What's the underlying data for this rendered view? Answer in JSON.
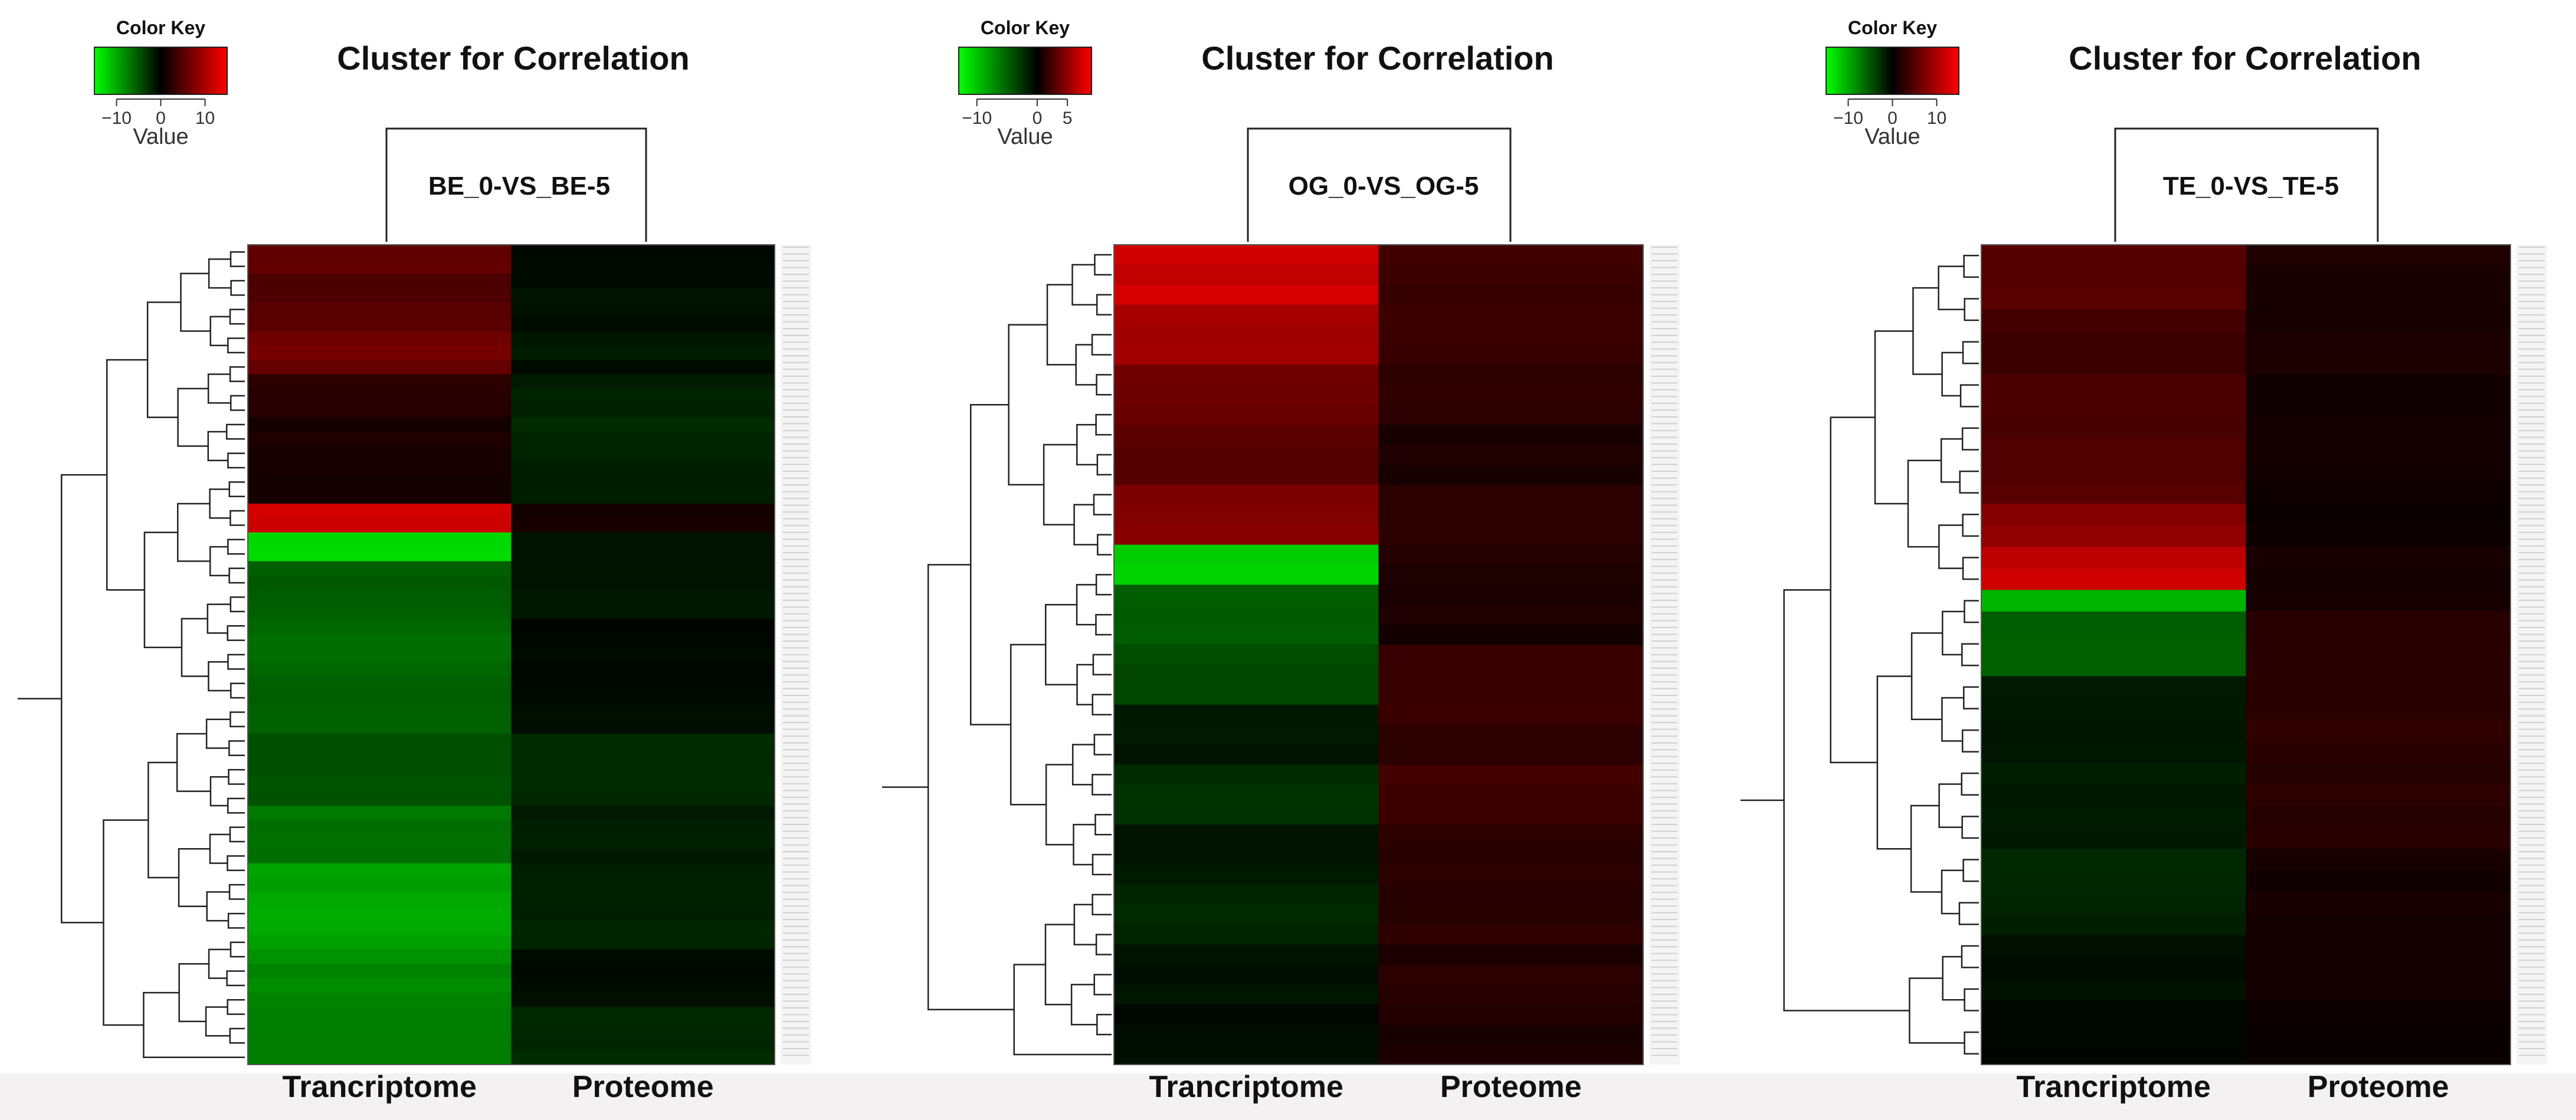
{
  "chart_data": [
    {
      "type": "heatmap",
      "title": "Cluster for Correlation",
      "column_dendrogram_label": "BE_0-VS_BE-5",
      "columns": [
        "Trancriptome",
        "Proteome"
      ],
      "color_key": {
        "title": "Color Key",
        "label": "Value",
        "ticks": [
          -10,
          0,
          10
        ],
        "tick_labels": [
          "−10",
          "0",
          "10"
        ],
        "range": [
          -15,
          15
        ],
        "low_color": "#00ff00",
        "mid_color": "#000000",
        "high_color": "#ff0000"
      },
      "row_bands": [
        {
          "rows": 2,
          "values": [
            5.5,
            -0.6
          ]
        },
        {
          "rows": 2,
          "values": [
            4.6,
            -0.8
          ]
        },
        {
          "rows": 2,
          "values": [
            5.2,
            -0.9
          ]
        },
        {
          "rows": 2,
          "values": [
            6.8,
            -1.4
          ]
        },
        {
          "rows": 1,
          "values": [
            6.0,
            -0.5
          ]
        },
        {
          "rows": 3,
          "values": [
            2.5,
            -1.9
          ]
        },
        {
          "rows": 3,
          "values": [
            1.5,
            -2.3
          ]
        },
        {
          "rows": 3,
          "values": [
            1.2,
            -1.8
          ]
        },
        {
          "rows": 2,
          "values": [
            12.5,
            1.2
          ]
        },
        {
          "rows": 2,
          "values": [
            -13.5,
            -0.8
          ]
        },
        {
          "rows": 4,
          "values": [
            -5.5,
            -1.1
          ]
        },
        {
          "rows": 4,
          "values": [
            -6.2,
            -0.4
          ]
        },
        {
          "rows": 4,
          "values": [
            -5.6,
            -0.8
          ]
        },
        {
          "rows": 5,
          "values": [
            -4.8,
            -2.5
          ]
        },
        {
          "rows": 4,
          "values": [
            -6.8,
            -1.6
          ]
        },
        {
          "rows": 6,
          "values": [
            -9.6,
            -2.0
          ]
        },
        {
          "rows": 4,
          "values": [
            -8.2,
            -0.6
          ]
        },
        {
          "rows": 4,
          "values": [
            -7.6,
            -2.4
          ]
        }
      ]
    },
    {
      "type": "heatmap",
      "title": "Cluster for Correlation",
      "column_dendrogram_label": "OG_0-VS_OG-5",
      "columns": [
        "Trancriptome",
        "Proteome"
      ],
      "color_key": {
        "title": "Color Key",
        "label": "Value",
        "ticks": [
          -10,
          0,
          5
        ],
        "tick_labels": [
          "−10",
          "0",
          "5"
        ],
        "range": [
          -13,
          9
        ],
        "low_color": "#00ff00",
        "mid_color": "#000000",
        "high_color": "#ff0000"
      },
      "row_bands": [
        {
          "rows": 3,
          "values": [
            7.2,
            2.2
          ]
        },
        {
          "rows": 3,
          "values": [
            5.8,
            2.0
          ]
        },
        {
          "rows": 3,
          "values": [
            3.8,
            1.6
          ]
        },
        {
          "rows": 3,
          "values": [
            3.2,
            0.9
          ]
        },
        {
          "rows": 3,
          "values": [
            4.6,
            1.4
          ]
        },
        {
          "rows": 2,
          "values": [
            -11.0,
            1.1
          ]
        },
        {
          "rows": 3,
          "values": [
            -4.5,
            0.8
          ]
        },
        {
          "rows": 3,
          "values": [
            -3.6,
            1.9
          ]
        },
        {
          "rows": 3,
          "values": [
            -1.0,
            1.8
          ]
        },
        {
          "rows": 3,
          "values": [
            -2.3,
            2.1
          ]
        },
        {
          "rows": 3,
          "values": [
            -1.2,
            1.4
          ]
        },
        {
          "rows": 3,
          "values": [
            -1.8,
            1.6
          ]
        },
        {
          "rows": 3,
          "values": [
            -0.8,
            1.2
          ]
        },
        {
          "rows": 3,
          "values": [
            -0.5,
            1.0
          ]
        }
      ]
    },
    {
      "type": "heatmap",
      "title": "Cluster for Correlation",
      "column_dendrogram_label": "TE_0-VS_TE-5",
      "columns": [
        "Trancriptome",
        "Proteome"
      ],
      "color_key": {
        "title": "Color Key",
        "label": "Value",
        "ticks": [
          -10,
          0,
          10
        ],
        "tick_labels": [
          "−10",
          "0",
          "10"
        ],
        "range": [
          -15,
          15
        ],
        "low_color": "#00ff00",
        "mid_color": "#000000",
        "high_color": "#ff0000"
      },
      "row_bands": [
        {
          "rows": 3,
          "values": [
            5.0,
            1.6
          ]
        },
        {
          "rows": 3,
          "values": [
            3.7,
            1.4
          ]
        },
        {
          "rows": 3,
          "values": [
            4.4,
            1.2
          ]
        },
        {
          "rows": 3,
          "values": [
            4.8,
            1.0
          ]
        },
        {
          "rows": 2,
          "values": [
            8.0,
            0.8
          ]
        },
        {
          "rows": 2,
          "values": [
            11.5,
            1.4
          ]
        },
        {
          "rows": 1,
          "values": [
            -11.0,
            1.6
          ]
        },
        {
          "rows": 3,
          "values": [
            -5.4,
            2.2
          ]
        },
        {
          "rows": 4,
          "values": [
            -1.2,
            2.5
          ]
        },
        {
          "rows": 4,
          "values": [
            -1.7,
            2.4
          ]
        },
        {
          "rows": 4,
          "values": [
            -2.1,
            1.2
          ]
        },
        {
          "rows": 3,
          "values": [
            -0.8,
            1.0
          ]
        },
        {
          "rows": 3,
          "values": [
            -0.5,
            0.8
          ]
        }
      ]
    }
  ]
}
